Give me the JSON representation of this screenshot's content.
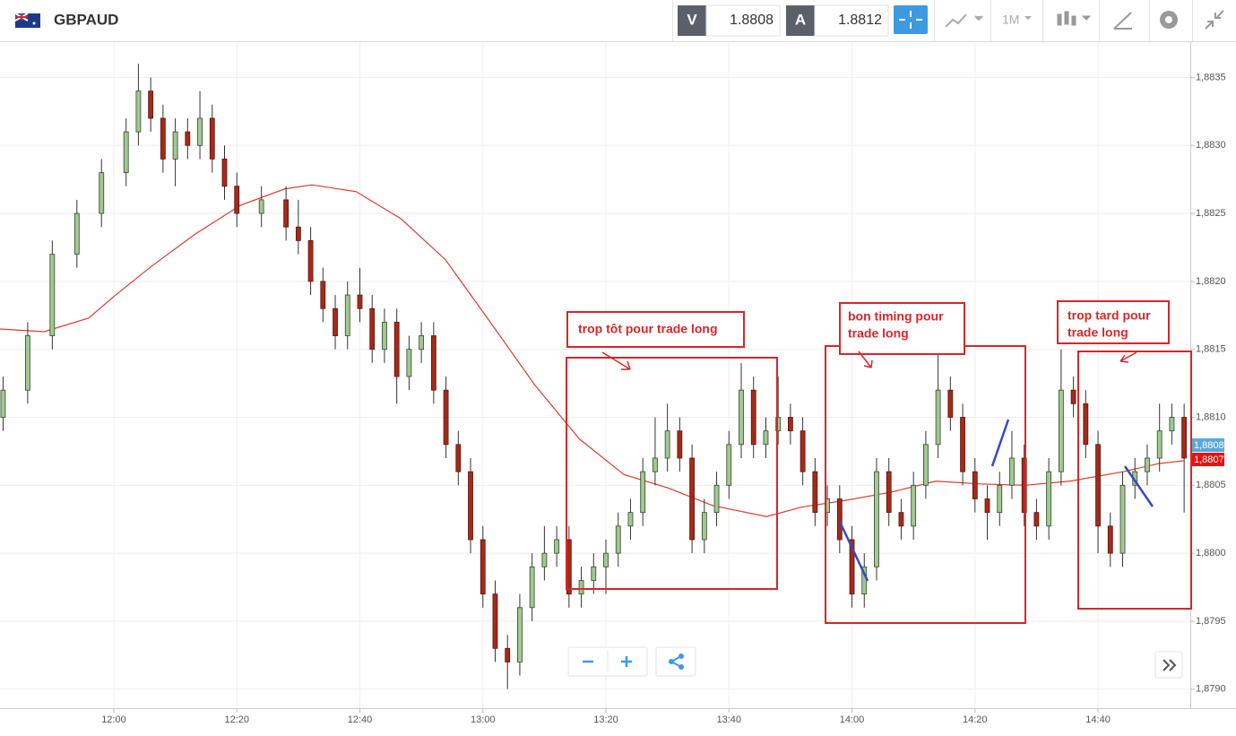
{
  "header": {
    "symbol": "GBPAUD",
    "bid_label": "V",
    "bid": "1.8808",
    "ask_label": "A",
    "ask": "1.8812",
    "timeframe": "1M"
  },
  "chart_data": {
    "type": "candlestick",
    "up_color": "#a3c791",
    "down_color": "#a52a1a",
    "x": [
      702,
      706,
      710,
      714,
      718,
      722,
      724,
      726,
      728,
      730,
      732,
      734,
      736,
      738,
      740,
      744,
      748,
      750,
      752,
      754,
      756,
      758,
      760,
      762,
      764,
      766,
      768,
      770,
      772,
      774,
      776,
      778,
      780,
      782,
      784,
      786,
      788,
      790,
      792,
      794,
      796,
      798,
      800,
      802,
      804,
      806,
      808,
      810,
      812,
      814,
      816,
      818,
      820,
      822,
      824,
      826,
      828,
      830,
      832,
      834,
      836,
      838,
      840,
      842,
      844,
      846,
      848,
      850,
      852,
      854,
      856,
      858,
      860,
      862,
      864,
      866,
      868,
      870,
      872,
      874,
      876,
      878,
      880,
      882,
      884,
      886,
      888,
      890,
      892,
      894
    ],
    "open": [
      1.881,
      1.8812,
      1.8816,
      1.8822,
      1.8825,
      1.8828,
      1.8831,
      1.8834,
      1.8832,
      1.8829,
      1.8831,
      1.883,
      1.8832,
      1.8829,
      1.8827,
      1.8825,
      1.8826,
      1.8824,
      1.8823,
      1.882,
      1.8818,
      1.8816,
      1.8819,
      1.8818,
      1.8815,
      1.8817,
      1.8813,
      1.8815,
      1.8816,
      1.8812,
      1.8808,
      1.8806,
      1.8801,
      1.8797,
      1.8793,
      1.8792,
      1.8796,
      1.8799,
      1.88,
      1.8801,
      1.8797,
      1.8798,
      1.8799,
      1.88,
      1.8802,
      1.8803,
      1.8806,
      1.8807,
      1.8809,
      1.8807,
      1.8801,
      1.8803,
      1.8805,
      1.8808,
      1.8812,
      1.8808,
      1.8809,
      1.881,
      1.8809,
      1.8806,
      1.8803,
      1.8804,
      1.8801,
      1.8797,
      1.8799,
      1.8806,
      1.8803,
      1.8802,
      1.8805,
      1.8808,
      1.8812,
      1.881,
      1.8806,
      1.8804,
      1.8803,
      1.8805,
      1.8807,
      1.8803,
      1.8802,
      1.8806,
      1.8812,
      1.8811,
      1.8808,
      1.8802,
      1.88,
      1.8805,
      1.8806,
      1.8807,
      1.8809,
      1.881
    ],
    "high": [
      1.8813,
      1.8817,
      1.8823,
      1.8826,
      1.8829,
      1.8832,
      1.8836,
      1.8835,
      1.8833,
      1.8832,
      1.8832,
      1.8834,
      1.8833,
      1.883,
      1.8828,
      1.8827,
      1.8827,
      1.8826,
      1.8824,
      1.8821,
      1.8819,
      1.882,
      1.8821,
      1.8819,
      1.8818,
      1.8818,
      1.8816,
      1.8817,
      1.8817,
      1.8813,
      1.8809,
      1.8807,
      1.8802,
      1.8798,
      1.8794,
      1.8797,
      1.88,
      1.8802,
      1.8802,
      1.8802,
      1.8799,
      1.88,
      1.8801,
      1.8803,
      1.8804,
      1.8807,
      1.881,
      1.8811,
      1.881,
      1.8808,
      1.8804,
      1.8806,
      1.8809,
      1.8814,
      1.8813,
      1.881,
      1.8813,
      1.8811,
      1.881,
      1.8807,
      1.8805,
      1.8805,
      1.8802,
      1.88,
      1.8807,
      1.8807,
      1.8804,
      1.8806,
      1.8809,
      1.8816,
      1.8813,
      1.8811,
      1.8807,
      1.8805,
      1.8806,
      1.8809,
      1.8808,
      1.8804,
      1.8807,
      1.8815,
      1.8813,
      1.8812,
      1.8809,
      1.8803,
      1.8806,
      1.8807,
      1.8808,
      1.8811,
      1.8811,
      1.8811
    ],
    "low": [
      1.8809,
      1.8811,
      1.8815,
      1.8821,
      1.8824,
      1.8827,
      1.883,
      1.8831,
      1.8828,
      1.8827,
      1.8829,
      1.8829,
      1.8828,
      1.8826,
      1.8824,
      1.8824,
      1.8823,
      1.8822,
      1.8819,
      1.8817,
      1.8815,
      1.8815,
      1.8817,
      1.8814,
      1.8814,
      1.8811,
      1.8812,
      1.8814,
      1.8811,
      1.8807,
      1.8805,
      1.88,
      1.8796,
      1.8792,
      1.879,
      1.8791,
      1.8795,
      1.8798,
      1.8799,
      1.8796,
      1.8796,
      1.8797,
      1.8797,
      1.8799,
      1.8801,
      1.8802,
      1.8805,
      1.8806,
      1.8806,
      1.88,
      1.88,
      1.8802,
      1.8804,
      1.8807,
      1.8807,
      1.8807,
      1.8808,
      1.8808,
      1.8805,
      1.8802,
      1.8802,
      1.88,
      1.8796,
      1.8796,
      1.8798,
      1.8802,
      1.8801,
      1.8801,
      1.8804,
      1.8807,
      1.8809,
      1.8805,
      1.8803,
      1.8801,
      1.8802,
      1.8804,
      1.8802,
      1.8801,
      1.8801,
      1.8805,
      1.881,
      1.8807,
      1.88,
      1.8799,
      1.8799,
      1.8804,
      1.8805,
      1.8806,
      1.8808,
      1.8803
    ],
    "close": [
      1.8812,
      1.8816,
      1.8822,
      1.8825,
      1.8828,
      1.8831,
      1.8834,
      1.8832,
      1.8829,
      1.8831,
      1.883,
      1.8832,
      1.8829,
      1.8827,
      1.8825,
      1.8826,
      1.8824,
      1.8823,
      1.882,
      1.8818,
      1.8816,
      1.8819,
      1.8818,
      1.8815,
      1.8817,
      1.8813,
      1.8815,
      1.8816,
      1.8812,
      1.8808,
      1.8806,
      1.8801,
      1.8797,
      1.8793,
      1.8792,
      1.8796,
      1.8799,
      1.88,
      1.8801,
      1.8797,
      1.8798,
      1.8799,
      1.88,
      1.8802,
      1.8803,
      1.8806,
      1.8807,
      1.8809,
      1.8807,
      1.8801,
      1.8803,
      1.8805,
      1.8808,
      1.8812,
      1.8808,
      1.8809,
      1.881,
      1.8809,
      1.8806,
      1.8803,
      1.8804,
      1.8801,
      1.8797,
      1.8799,
      1.8806,
      1.8803,
      1.8802,
      1.8805,
      1.8808,
      1.8812,
      1.881,
      1.8806,
      1.8804,
      1.8803,
      1.8805,
      1.8807,
      1.8803,
      1.8802,
      1.8806,
      1.8812,
      1.8811,
      1.8808,
      1.8802,
      1.88,
      1.8805,
      1.8806,
      1.8807,
      1.8809,
      1.881,
      1.8807
    ],
    "moving_average": {
      "color": "#e03a2f",
      "x": [
        701.4,
        708.7,
        715.9,
        720.3,
        726.1,
        733.3,
        740.6,
        747.8,
        752.2,
        759.4,
        766.7,
        773.9,
        781.2,
        788.4,
        795.7,
        802.9,
        810.1,
        817.4,
        826.1,
        831.9,
        839.1,
        846.4,
        853.6,
        860.9,
        868.1,
        875.4,
        884.1,
        889.9,
        893.9
      ],
      "values": [
        1.88165,
        1.88163,
        1.88173,
        1.8819,
        1.88211,
        1.88235,
        1.88256,
        1.88268,
        1.88271,
        1.88266,
        1.88246,
        1.88216,
        1.8817,
        1.88124,
        1.88084,
        1.88058,
        1.88048,
        1.88035,
        1.88027,
        1.88034,
        1.88039,
        1.88045,
        1.88053,
        1.88051,
        1.8805,
        1.88053,
        1.8806,
        1.88066,
        1.88068
      ]
    },
    "xlim": [
      701.5,
      895
    ],
    "ylim": [
      1.87886,
      1.88376
    ],
    "xticks": [
      {
        "value": 720,
        "label": "12:00"
      },
      {
        "value": 740,
        "label": "12:20"
      },
      {
        "value": 760,
        "label": "12:40"
      },
      {
        "value": 780,
        "label": "13:00"
      },
      {
        "value": 800,
        "label": "13:20"
      },
      {
        "value": 820,
        "label": "13:40"
      },
      {
        "value": 840,
        "label": "14:00"
      },
      {
        "value": 860,
        "label": "14:20"
      },
      {
        "value": 880,
        "label": "14:40"
      }
    ],
    "yticks": [
      {
        "value": 1.879,
        "label": "1,8790"
      },
      {
        "value": 1.8795,
        "label": "1,8795"
      },
      {
        "value": 1.88,
        "label": "1,8800"
      },
      {
        "value": 1.8805,
        "label": "1,8805"
      },
      {
        "value": 1.881,
        "label": "1,8810"
      },
      {
        "value": 1.8815,
        "label": "1,8815"
      },
      {
        "value": 1.882,
        "label": "1,8820"
      },
      {
        "value": 1.8825,
        "label": "1,8825"
      },
      {
        "value": 1.883,
        "label": "1,8830"
      },
      {
        "value": 1.8835,
        "label": "1,8835"
      }
    ],
    "grid": true,
    "price_tags": [
      {
        "label": "1,8808",
        "color": "#5ba8d9"
      },
      {
        "label": "1,8807",
        "color": "#e8130f"
      }
    ],
    "annotations": [
      {
        "lines": [
          "trop tôt pour trade long"
        ]
      },
      {
        "lines": [
          "bon timing pour",
          "trade long"
        ]
      },
      {
        "lines": [
          "trop tard pour",
          "trade long"
        ]
      }
    ]
  }
}
